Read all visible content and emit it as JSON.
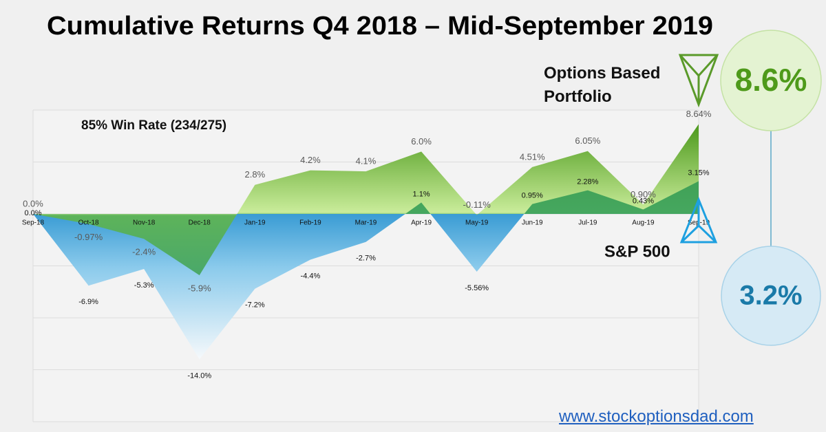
{
  "chart_data": {
    "type": "area",
    "title": "Cumulative Returns Q4 2018 – Mid-September 2019",
    "annotation": "85% Win Rate (234/275)",
    "url": "www.stockoptionsdad.com",
    "categories": [
      "Sep-18",
      "Oct-18",
      "Nov-18",
      "Dec-18",
      "Jan-19",
      "Feb-19",
      "Mar-19",
      "Apr-19",
      "May-19",
      "Jun-19",
      "Jul-19",
      "Aug-19",
      "Sep-19"
    ],
    "series": [
      {
        "name": "Options Based Portfolio",
        "color": "#5aa02c",
        "values": [
          0.0,
          -0.97,
          -2.4,
          -5.9,
          2.8,
          4.2,
          4.1,
          6.0,
          -0.11,
          4.51,
          6.05,
          0.9,
          8.64
        ],
        "value_labels": [
          "0.0%",
          "-0.97%",
          "-2.4%",
          "-5.9%",
          "2.8%",
          "4.2%",
          "4.1%",
          "6.0%",
          "-0.11%",
          "4.51%",
          "6.05%",
          "0.90%",
          "8.64%"
        ],
        "total": {
          "value": 8.6,
          "label": "8.6%"
        }
      },
      {
        "name": "S&P 500",
        "color": "#3aa0d8",
        "values": [
          0.0,
          -6.9,
          -5.3,
          -14.0,
          -7.2,
          -4.4,
          -2.7,
          1.1,
          -5.56,
          0.95,
          2.28,
          0.43,
          3.15
        ],
        "value_labels": [
          "0.0%",
          "-6.9%",
          "-5.3%",
          "-14.0%",
          "-7.2%",
          "-4.4%",
          "-2.7%",
          "1.1%",
          "-5.56%",
          "0.95%",
          "2.28%",
          "0.43%",
          "3.15%"
        ],
        "total": {
          "value": 3.2,
          "label": "3.2%"
        }
      }
    ],
    "ylim": [
      -20,
      10
    ],
    "yticks": [
      -20,
      -15,
      -10,
      -5,
      0,
      5,
      10
    ],
    "grid": true
  }
}
